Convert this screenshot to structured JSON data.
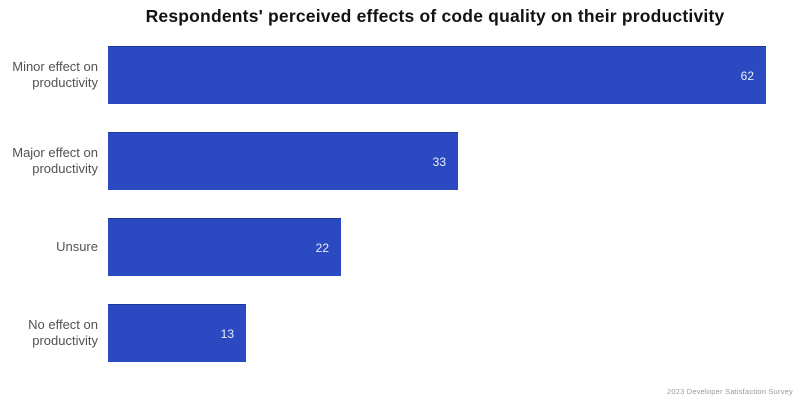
{
  "chart_data": {
    "type": "bar",
    "orientation": "horizontal",
    "title": "Respondents' perceived effects of code quality on their productivity",
    "categories": [
      "Minor effect on productivity",
      "Major effect on productivity",
      "Unsure",
      "No effect on productivity"
    ],
    "values": [
      62,
      33,
      22,
      13
    ],
    "xlabel": "",
    "ylabel": "",
    "xlim": [
      0,
      62
    ],
    "grid": false,
    "legend": false,
    "value_labels_shown": true,
    "bar_color": "#2b4ac2",
    "value_label_color": "#e9edf9",
    "category_label_color": "#525252",
    "title_color": "#121212"
  },
  "footer": {
    "caption": "2023 Developer Satisfaction Survey"
  }
}
